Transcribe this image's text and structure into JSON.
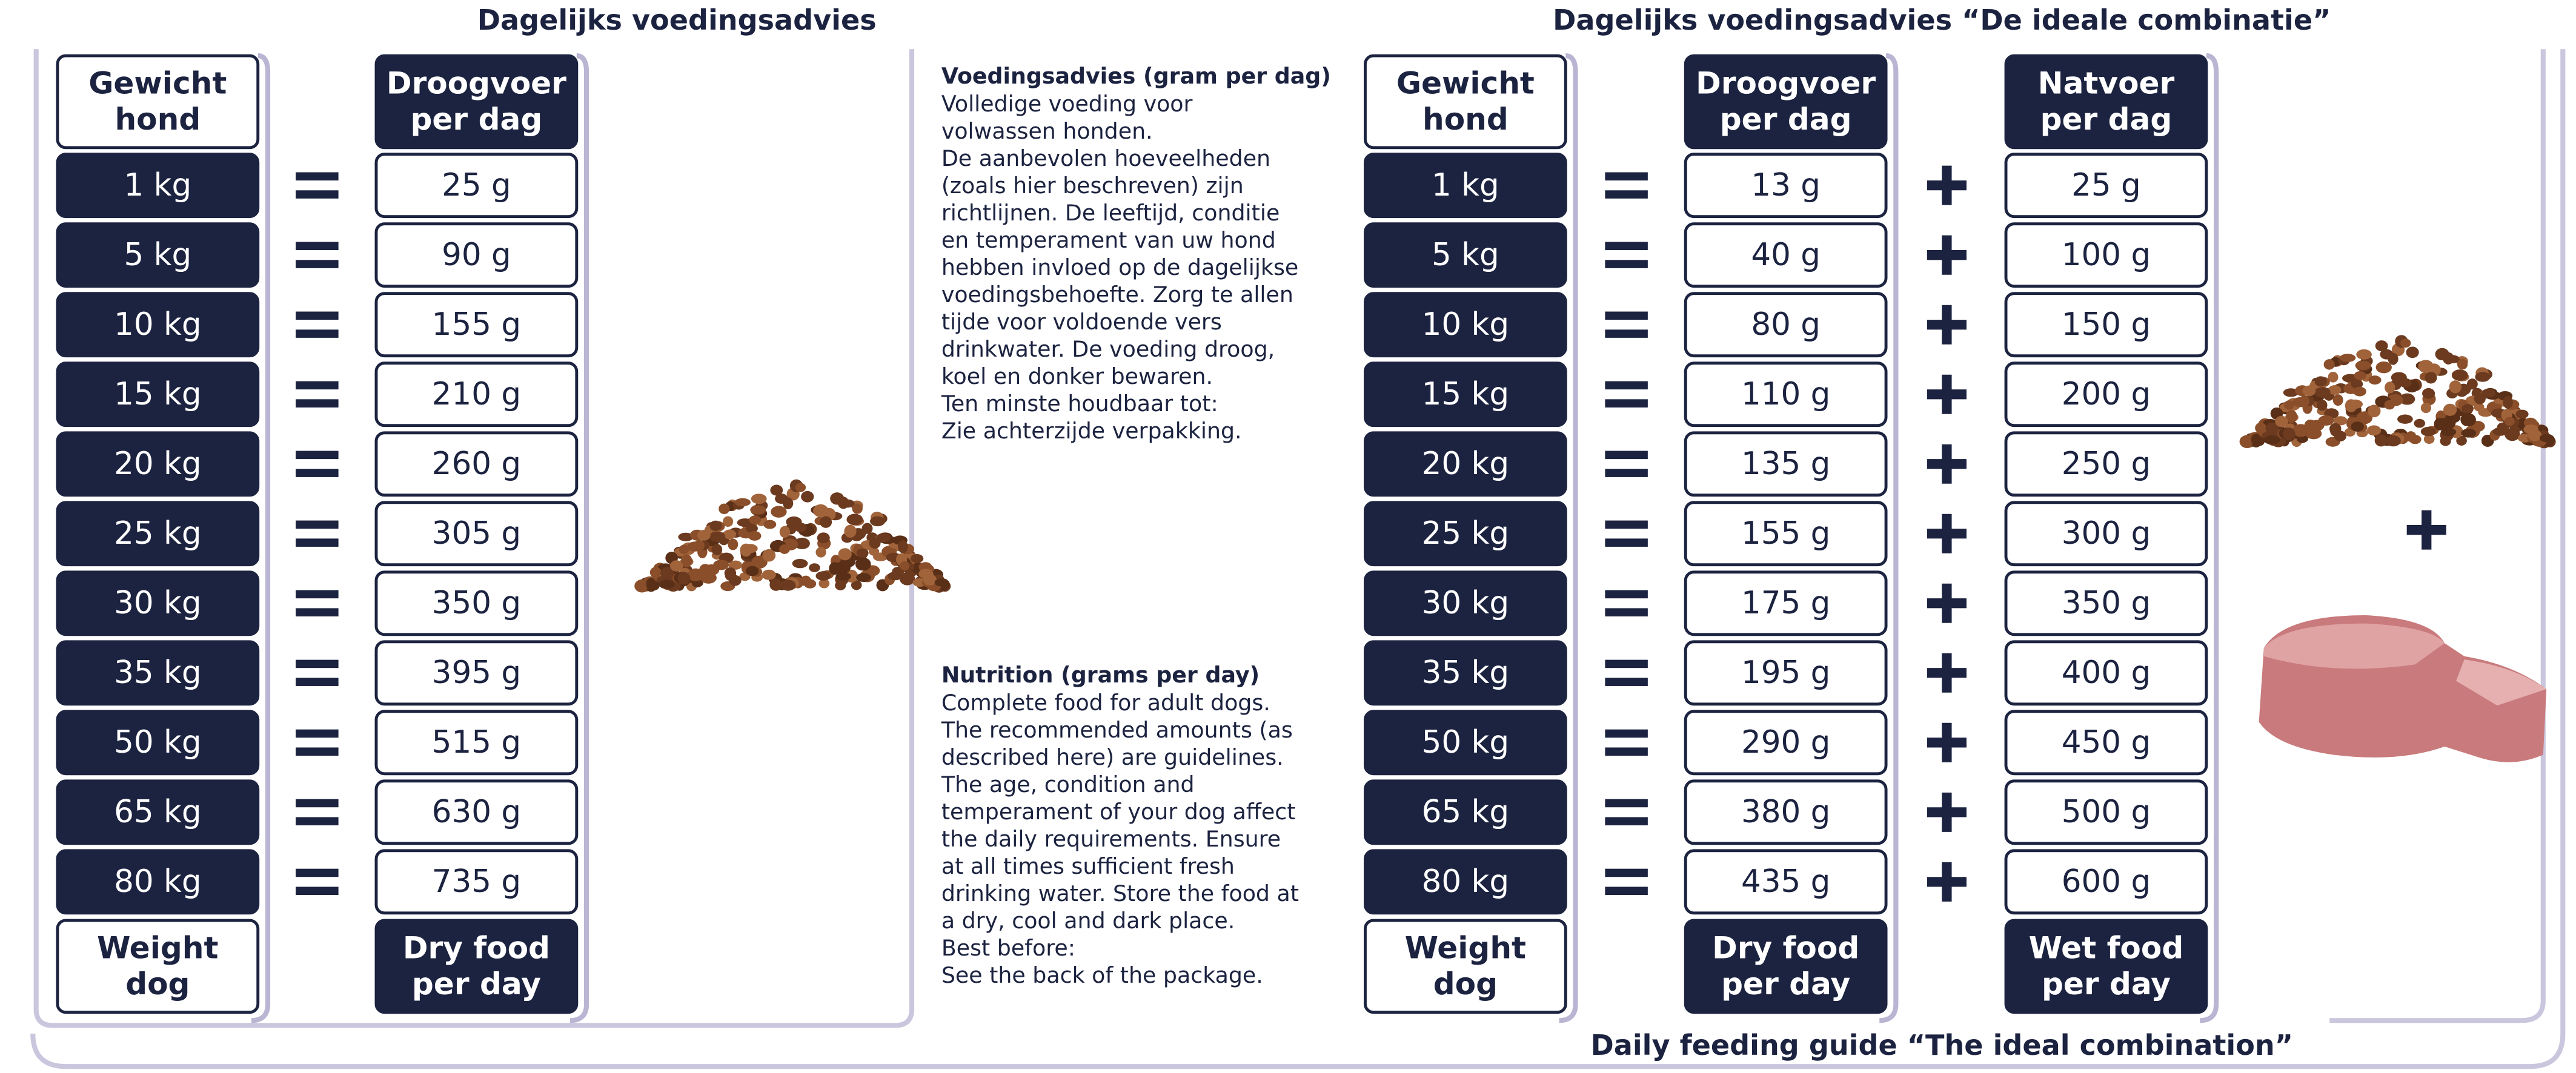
{
  "left_table": {
    "title": "Dagelijks voedingsadvies",
    "weight_header": [
      "Gewicht",
      "hond"
    ],
    "dry_header": [
      "Droogvoer",
      "per dag"
    ],
    "weight_footer": [
      "Weight",
      "dog"
    ],
    "dry_footer": [
      "Dry food",
      "per day"
    ],
    "weights": [
      "1 kg",
      "5 kg",
      "10 kg",
      "15 kg",
      "20 kg",
      "25 kg",
      "30 kg",
      "35 kg",
      "50 kg",
      "65 kg",
      "80 kg"
    ],
    "dry": [
      "25 g",
      "90 g",
      "155 g",
      "210 g",
      "260 g",
      "305 g",
      "350 g",
      "395 g",
      "515 g",
      "630 g",
      "735 g"
    ]
  },
  "dutch_text": {
    "heading": "Voedingsadvies (gram per dag)",
    "lines": [
      "Volledige voeding voor",
      "volwassen honden.",
      "De aanbevolen hoeveelheden",
      "(zoals hier beschreven) zijn",
      "richtlijnen. De leeftijd, conditie",
      "en temperament van uw hond",
      "hebben invloed op de dagelijkse",
      "voedingsbehoefte. Zorg te allen",
      "tijde voor voldoende vers",
      "drinkwater. De voeding droog,",
      "koel en donker bewaren.",
      "Ten minste houdbaar tot:",
      "Zie achterzijde verpakking."
    ]
  },
  "english_text": {
    "heading": "Nutrition (grams per day)",
    "lines": [
      "Complete food for adult dogs.",
      "The recommended amounts (as",
      "described here) are guidelines.",
      "The age, condition and",
      "temperament of your dog affect",
      "the daily requirements. Ensure",
      "at all times sufficient fresh",
      "drinking water. Store the food at",
      "a dry, cool and dark place.",
      "Best before:",
      "See the back of the package."
    ]
  },
  "right_table": {
    "title": "Dagelijks voedingsadvies “De ideale combinatie”",
    "footer_title": "Daily feeding guide “The ideal combination”",
    "weight_header": [
      "Gewicht",
      "hond"
    ],
    "dry_header": [
      "Droogvoer",
      "per dag"
    ],
    "wet_header": [
      "Natvoer",
      "per dag"
    ],
    "weight_footer": [
      "Weight",
      "dog"
    ],
    "dry_footer": [
      "Dry food",
      "per day"
    ],
    "wet_footer": [
      "Wet food",
      "per day"
    ],
    "weights": [
      "1 kg",
      "5 kg",
      "10 kg",
      "15 kg",
      "20 kg",
      "25 kg",
      "30 kg",
      "35 kg",
      "50 kg",
      "65 kg",
      "80 kg"
    ],
    "dry": [
      "13 g",
      "40 g",
      "80 g",
      "110 g",
      "135 g",
      "155 g",
      "175 g",
      "195 g",
      "290 g",
      "380 g",
      "435 g"
    ],
    "wet": [
      "25 g",
      "100 g",
      "150 g",
      "200 g",
      "250 g",
      "300 g",
      "350 g",
      "400 g",
      "450 g",
      "500 g",
      "600 g"
    ]
  }
}
